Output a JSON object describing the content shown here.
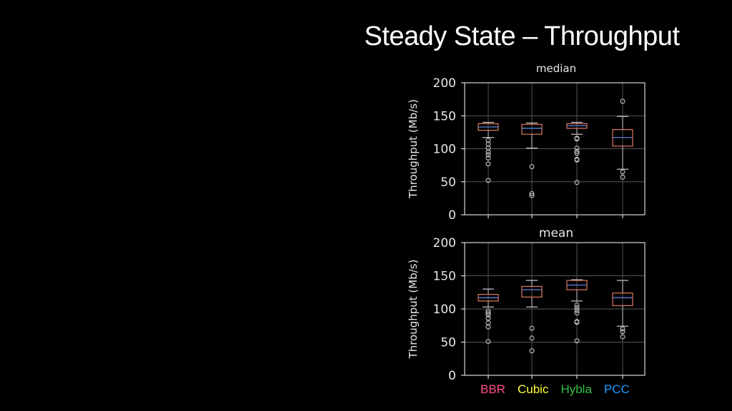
{
  "slide": {
    "title": "Steady State – Throughput"
  },
  "chart_data": [
    {
      "type": "box",
      "title": "median",
      "ylabel": "Throughput (Mb/s)",
      "ylim": [
        0,
        200
      ],
      "yticks": [
        0,
        50,
        100,
        150,
        200
      ],
      "grid": true,
      "categories": [
        "BBR",
        "Cubic",
        "Hybla",
        "PCC"
      ],
      "boxes": [
        {
          "category": "BBR",
          "whisker_low": 117,
          "q1": 128,
          "median": 133,
          "q3": 138,
          "whisker_high": 140,
          "outliers": [
            113,
            107,
            101,
            95,
            91,
            86,
            77,
            52
          ]
        },
        {
          "category": "Cubic",
          "whisker_low": 101,
          "q1": 122,
          "median": 131,
          "q3": 137,
          "whisker_high": 139,
          "outliers": [
            73,
            32,
            29
          ]
        },
        {
          "category": "Hybla",
          "whisker_low": 122,
          "q1": 131,
          "median": 135,
          "q3": 138,
          "whisker_high": 140,
          "outliers": [
            116,
            115,
            101,
            96,
            93,
            84,
            83,
            49
          ]
        },
        {
          "category": "PCC",
          "whisker_low": 69,
          "q1": 104,
          "median": 117,
          "q3": 129,
          "whisker_high": 149,
          "outliers": [
            172,
            65,
            57
          ]
        }
      ]
    },
    {
      "type": "box",
      "title": "mean",
      "ylabel": "Throughput (Mb/s)",
      "ylim": [
        0,
        200
      ],
      "yticks": [
        0,
        50,
        100,
        150,
        200
      ],
      "grid": true,
      "categories": [
        "BBR",
        "Cubic",
        "Hybla",
        "PCC"
      ],
      "boxes": [
        {
          "category": "BBR",
          "whisker_low": 103,
          "q1": 112,
          "median": 117,
          "q3": 122,
          "whisker_high": 130,
          "outliers": [
            97,
            94,
            91,
            86,
            79,
            73,
            51
          ]
        },
        {
          "category": "Cubic",
          "whisker_low": 103,
          "q1": 118,
          "median": 129,
          "q3": 134,
          "whisker_high": 143,
          "outliers": [
            71,
            56,
            37
          ]
        },
        {
          "category": "Hybla",
          "whisker_low": 112,
          "q1": 129,
          "median": 136,
          "q3": 143,
          "whisker_high": 144,
          "outliers": [
            106,
            102,
            98,
            94,
            81,
            80,
            52
          ]
        },
        {
          "category": "PCC",
          "whisker_low": 74,
          "q1": 105,
          "median": 117,
          "q3": 124,
          "whisker_high": 143,
          "outliers": [
            70,
            66,
            58
          ]
        }
      ]
    }
  ],
  "legend": [
    {
      "label": "BBR",
      "color": "#ff4f8b"
    },
    {
      "label": "Cubic",
      "color": "#ffff3c"
    },
    {
      "label": "Hybla",
      "color": "#33c142"
    },
    {
      "label": "PCC",
      "color": "#1f9bff"
    }
  ],
  "colors": {
    "box": "#e07a5f",
    "median_line": "#5b7fd6",
    "axis": "#d9d9d9",
    "grid": "#555555",
    "text": "#e6e6e6"
  }
}
